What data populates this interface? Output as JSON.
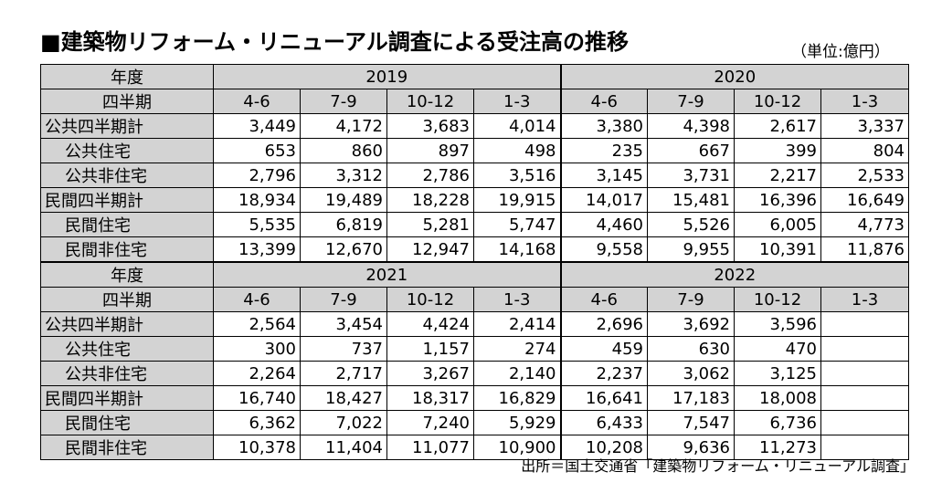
{
  "title": "■建築物リフォーム・リニューアル調査による受注高の推移",
  "unit": "（単位:億円）",
  "source": "出所＝国土交通省「建築物リフォーム・リニューアル調査」",
  "labels": {
    "year_header": "年度",
    "quarter_header": "四半期"
  },
  "quarters": [
    "4-6",
    "7-9",
    "10-12",
    "1-3"
  ],
  "blocks": [
    {
      "years": [
        "2019",
        "2020"
      ],
      "rows": [
        {
          "label": "公共四半期計",
          "values": [
            "3,449",
            "4,172",
            "3,683",
            "4,014",
            "3,380",
            "4,398",
            "2,617",
            "3,337"
          ]
        },
        {
          "label": "公共住宅",
          "values": [
            "653",
            "860",
            "897",
            "498",
            "235",
            "667",
            "399",
            "804"
          ]
        },
        {
          "label": "公共非住宅",
          "values": [
            "2,796",
            "3,312",
            "2,786",
            "3,516",
            "3,145",
            "3,731",
            "2,217",
            "2,533"
          ]
        },
        {
          "label": "民間四半期計",
          "values": [
            "18,934",
            "19,489",
            "18,228",
            "19,915",
            "14,017",
            "15,481",
            "16,396",
            "16,649"
          ]
        },
        {
          "label": "民間住宅",
          "values": [
            "5,535",
            "6,819",
            "5,281",
            "5,747",
            "4,460",
            "5,526",
            "6,005",
            "4,773"
          ]
        },
        {
          "label": "民間非住宅",
          "values": [
            "13,399",
            "12,670",
            "12,947",
            "14,168",
            "9,558",
            "9,955",
            "10,391",
            "11,876"
          ]
        }
      ]
    },
    {
      "years": [
        "2021",
        "2022"
      ],
      "rows": [
        {
          "label": "公共四半期計",
          "values": [
            "2,564",
            "3,454",
            "4,424",
            "2,414",
            "2,696",
            "3,692",
            "3,596",
            ""
          ]
        },
        {
          "label": "公共住宅",
          "values": [
            "300",
            "737",
            "1,157",
            "274",
            "459",
            "630",
            "470",
            ""
          ]
        },
        {
          "label": "公共非住宅",
          "values": [
            "2,264",
            "2,717",
            "3,267",
            "2,140",
            "2,237",
            "3,062",
            "3,125",
            ""
          ]
        },
        {
          "label": "民間四半期計",
          "values": [
            "16,740",
            "18,427",
            "18,317",
            "16,829",
            "16,641",
            "17,183",
            "18,008",
            ""
          ]
        },
        {
          "label": "民間住宅",
          "values": [
            "6,362",
            "7,022",
            "7,240",
            "5,929",
            "6,433",
            "7,547",
            "6,736",
            ""
          ]
        },
        {
          "label": "民間非住宅",
          "values": [
            "10,378",
            "11,404",
            "11,077",
            "10,900",
            "10,208",
            "9,636",
            "11,273",
            ""
          ]
        }
      ]
    }
  ]
}
